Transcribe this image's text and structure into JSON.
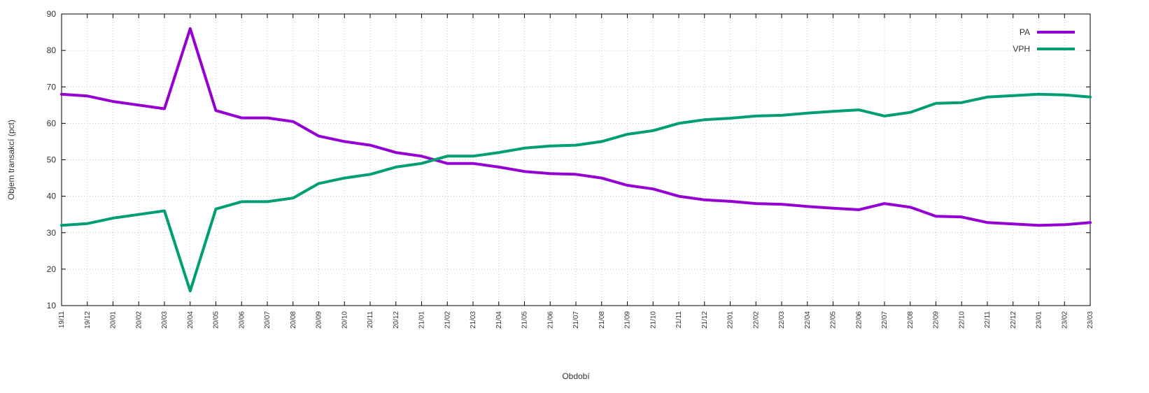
{
  "chart_data": {
    "type": "line",
    "title": "",
    "xlabel": "Období",
    "ylabel": "Objem transakcí (pct)",
    "ylim": [
      10,
      90
    ],
    "yticks": [
      10,
      20,
      30,
      40,
      50,
      60,
      70,
      80,
      90
    ],
    "grid": true,
    "legend_position": "top-right",
    "categories": [
      "19/11",
      "19/12",
      "20/01",
      "20/02",
      "20/03",
      "20/04",
      "20/05",
      "20/06",
      "20/07",
      "20/08",
      "20/09",
      "20/10",
      "20/11",
      "20/12",
      "21/01",
      "21/02",
      "21/03",
      "21/04",
      "21/05",
      "21/06",
      "21/07",
      "21/08",
      "21/09",
      "21/10",
      "21/11",
      "21/12",
      "22/01",
      "22/02",
      "22/03",
      "22/04",
      "22/05",
      "22/06",
      "22/07",
      "22/08",
      "22/09",
      "22/10",
      "22/11",
      "22/12",
      "23/01",
      "23/02",
      "23/03"
    ],
    "series": [
      {
        "name": "PA",
        "color": "#9400d3",
        "values": [
          68,
          67.5,
          66,
          65,
          64,
          86,
          63.5,
          61.5,
          61.5,
          60.5,
          56.5,
          55,
          54,
          52,
          51,
          49,
          49,
          48,
          46.8,
          46.2,
          46,
          45,
          43,
          42,
          40,
          39,
          38.6,
          38,
          37.8,
          37.2,
          36.7,
          36.3,
          38,
          37,
          34.5,
          34.3,
          32.8,
          32.4,
          32,
          32.2,
          32.8
        ]
      },
      {
        "name": "VPH",
        "color": "#009e73",
        "values": [
          32,
          32.5,
          34,
          35,
          36,
          14,
          36.5,
          38.5,
          38.5,
          39.5,
          43.5,
          45,
          46,
          48,
          49,
          51,
          51,
          52,
          53.2,
          53.8,
          54,
          55,
          57,
          58,
          60,
          61,
          61.4,
          62,
          62.2,
          62.8,
          63.3,
          63.7,
          62,
          63,
          65.5,
          65.7,
          67.2,
          67.6,
          68,
          67.8,
          67.2
        ]
      }
    ]
  }
}
